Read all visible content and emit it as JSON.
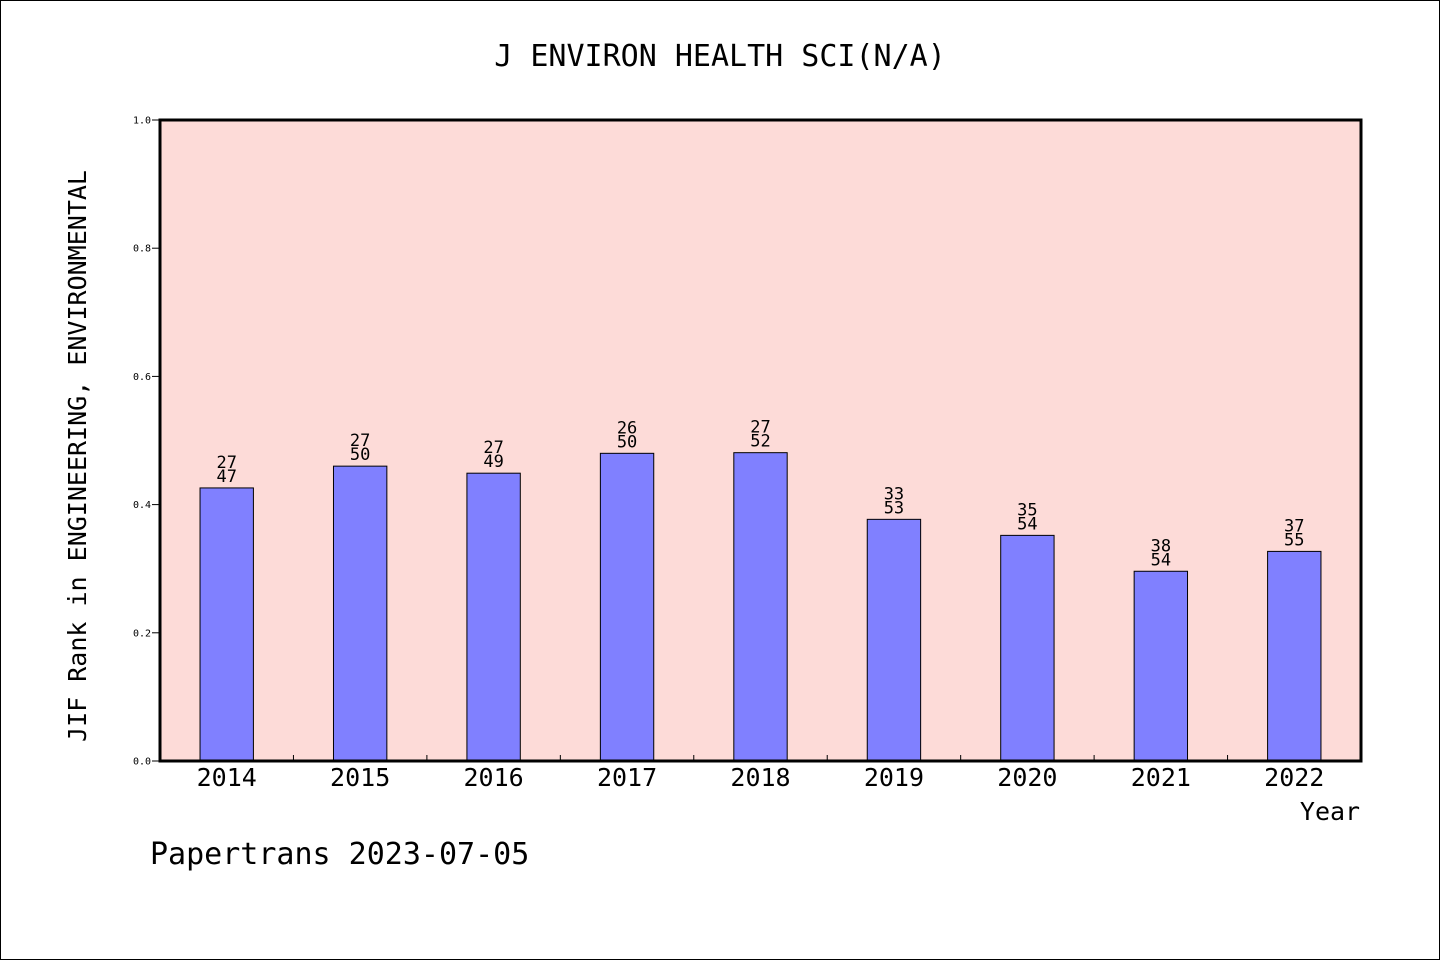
{
  "chart_data": {
    "type": "bar",
    "title": "J ENVIRON HEALTH SCI(N/A)",
    "xlabel": "Year",
    "ylabel": "JIF Rank in ENGINEERING, ENVIRONMENTAL",
    "ylim": [
      0,
      1.0
    ],
    "yticks": [
      "0.0",
      "0.2",
      "0.4",
      "0.6",
      "0.8",
      "1.0"
    ],
    "categories": [
      "2014",
      "2015",
      "2016",
      "2017",
      "2018",
      "2019",
      "2020",
      "2021",
      "2022"
    ],
    "values": [
      0.426,
      0.46,
      0.449,
      0.48,
      0.481,
      0.377,
      0.352,
      0.296,
      0.327
    ],
    "rank_labels": [
      "27",
      "27",
      "27",
      "26",
      "27",
      "33",
      "35",
      "38",
      "37"
    ],
    "total_labels": [
      "47",
      "50",
      "49",
      "50",
      "52",
      "53",
      "54",
      "54",
      "55"
    ],
    "grid": false,
    "colors": {
      "plot_background": "#fddbd8",
      "bar_fill": "#8080ff",
      "bar_stroke": "#000000"
    }
  },
  "footer": "Papertrans 2023-07-05"
}
